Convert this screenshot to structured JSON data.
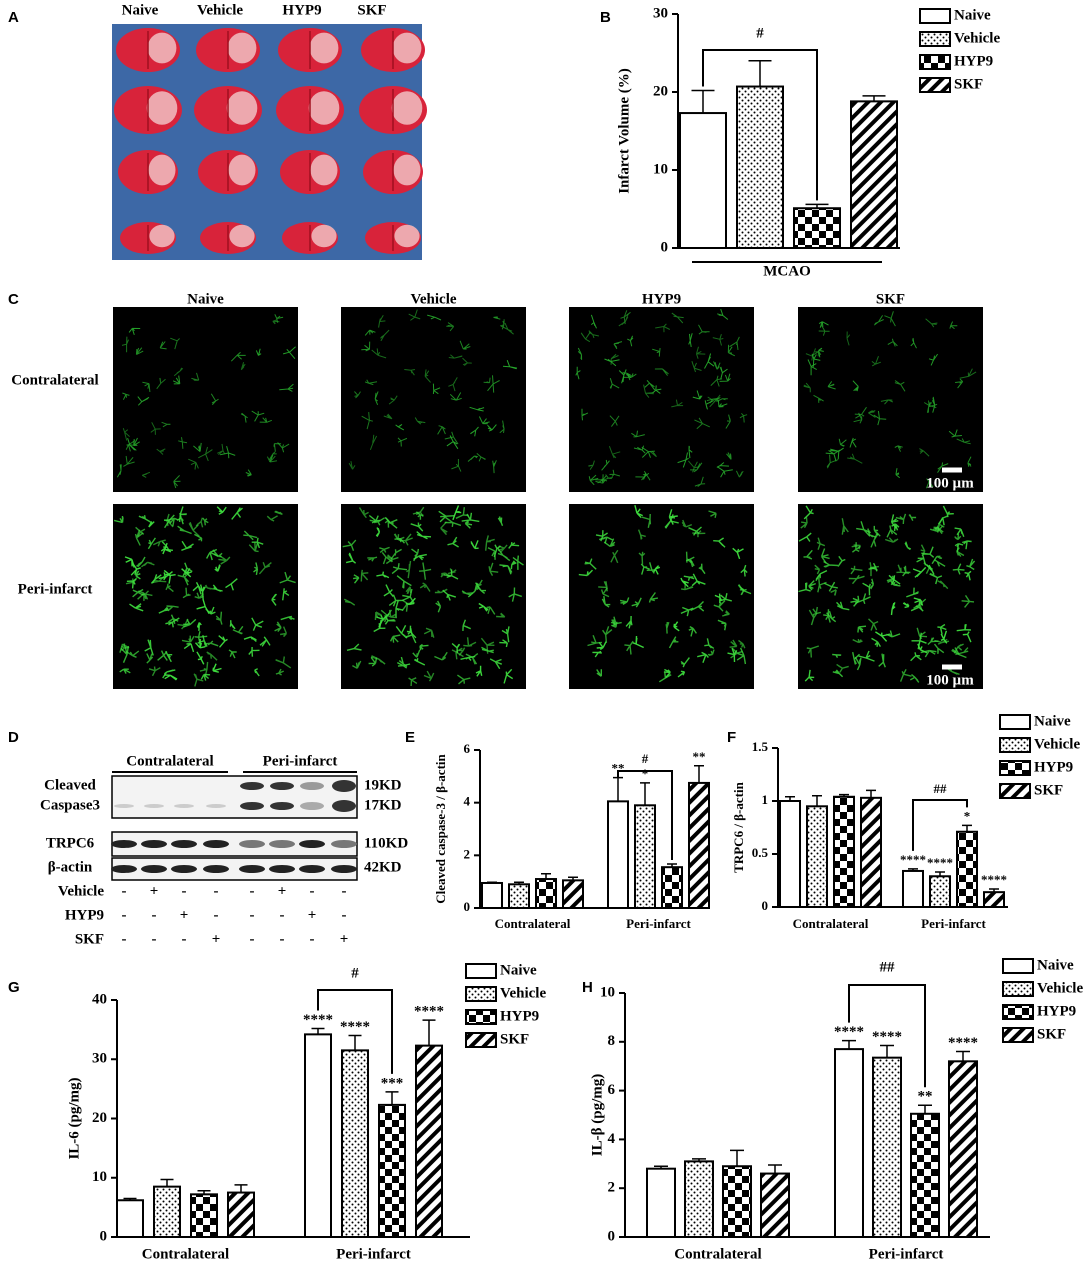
{
  "panels": {
    "A": {
      "letter": "A",
      "columns": [
        "Naive",
        "Vehicle",
        "HYP9",
        "SKF"
      ]
    },
    "C": {
      "letter": "C",
      "columns": [
        "Naive",
        "Vehicle",
        "HYP9",
        "SKF"
      ],
      "rows": [
        "Contralateral",
        "Peri-infarct"
      ],
      "scale_bar": [
        "100 µm",
        "100 µm"
      ]
    },
    "D": {
      "letter": "D",
      "groups": [
        "Contralateral",
        "Peri-infarct"
      ],
      "bands": [
        {
          "label": [
            "Cleaved",
            "Caspase3"
          ],
          "sizes": [
            "19KD",
            "17KD"
          ]
        },
        {
          "label": [
            "TRPC6"
          ],
          "sizes": [
            "110KD"
          ]
        },
        {
          "label": [
            "β-actin"
          ],
          "sizes": [
            "42KD"
          ]
        }
      ],
      "treatments": [
        {
          "name": "Vehicle",
          "signs": [
            "-",
            "+",
            "-",
            "-",
            "-",
            "+",
            "-",
            "-"
          ]
        },
        {
          "name": "HYP9",
          "signs": [
            "-",
            "-",
            "+",
            "-",
            "-",
            "-",
            "+",
            "-"
          ]
        },
        {
          "name": "SKF",
          "signs": [
            "-",
            "-",
            "-",
            "+",
            "-",
            "-",
            "-",
            "+"
          ]
        }
      ]
    }
  },
  "chart_data": [
    {
      "letter": "B",
      "type": "bar",
      "ylabel": "Infarct Volume (%)",
      "categories": [
        "MCAO"
      ],
      "ylim": [
        0,
        30
      ],
      "yticks": [
        0,
        10,
        20,
        30
      ],
      "bracket_label": "#",
      "legend": true,
      "series": [
        {
          "name": "Naive",
          "pattern": "none",
          "values": [
            17.3
          ],
          "errors": [
            2.9
          ],
          "stars": [
            null
          ]
        },
        {
          "name": "Vehicle",
          "pattern": "dots",
          "values": [
            20.7
          ],
          "errors": [
            3.3
          ],
          "stars": [
            null
          ]
        },
        {
          "name": "HYP9",
          "pattern": "checker",
          "values": [
            5.1
          ],
          "errors": [
            0.5
          ],
          "stars": [
            null
          ]
        },
        {
          "name": "SKF",
          "pattern": "stripes",
          "values": [
            18.8
          ],
          "errors": [
            0.7
          ],
          "stars": [
            null
          ]
        }
      ]
    },
    {
      "letter": "E",
      "type": "bar",
      "ylabel": "Cleaved caspase-3 / β-actin",
      "categories": [
        "Contralateral",
        "Peri-infarct"
      ],
      "ylim": [
        0,
        6
      ],
      "yticks": [
        0,
        2,
        4,
        6
      ],
      "bracket_label": "#",
      "legend": false,
      "series": [
        {
          "pattern": "none",
          "values": [
            0.95,
            4.05
          ],
          "errors": [
            0.03,
            0.9
          ],
          "stars": [
            null,
            "**"
          ]
        },
        {
          "pattern": "dots",
          "values": [
            0.9,
            3.9
          ],
          "errors": [
            0.08,
            0.85
          ],
          "stars": [
            null,
            "*"
          ]
        },
        {
          "pattern": "checker",
          "values": [
            1.1,
            1.55
          ],
          "errors": [
            0.2,
            0.12
          ],
          "stars": [
            null,
            null
          ]
        },
        {
          "pattern": "stripes",
          "values": [
            1.05,
            4.75
          ],
          "errors": [
            0.12,
            0.65
          ],
          "stars": [
            null,
            "**"
          ]
        }
      ]
    },
    {
      "letter": "F",
      "type": "bar",
      "ylabel": "TRPC6 / β-actin",
      "categories": [
        "Contralateral",
        "Peri-infarct"
      ],
      "ylim": [
        0,
        1.5
      ],
      "yticks": [
        0,
        0.5,
        1,
        1.5
      ],
      "bracket_label": "##",
      "legend": true,
      "series": [
        {
          "name": "Naive",
          "pattern": "none",
          "values": [
            1.0,
            0.34
          ],
          "errors": [
            0.04,
            0.02
          ],
          "stars": [
            null,
            "****"
          ]
        },
        {
          "name": "Vehicle",
          "pattern": "dots",
          "values": [
            0.95,
            0.29
          ],
          "errors": [
            0.1,
            0.04
          ],
          "stars": [
            null,
            "****"
          ]
        },
        {
          "name": "HYP9",
          "pattern": "checker",
          "values": [
            1.04,
            0.71
          ],
          "errors": [
            0.02,
            0.06
          ],
          "stars": [
            null,
            "*"
          ]
        },
        {
          "name": "SKF",
          "pattern": "stripes",
          "values": [
            1.03,
            0.14
          ],
          "errors": [
            0.07,
            0.03
          ],
          "stars": [
            null,
            "****"
          ]
        }
      ]
    },
    {
      "letter": "G",
      "type": "bar",
      "ylabel": "IL-6 (pg/mg)",
      "categories": [
        "Contralateral",
        "Peri-infarct"
      ],
      "ylim": [
        0,
        40
      ],
      "yticks": [
        0,
        10,
        20,
        30,
        40
      ],
      "bracket_label": "#",
      "legend": true,
      "series": [
        {
          "name": "Naive",
          "pattern": "none",
          "values": [
            6.2,
            34.2
          ],
          "errors": [
            0.3,
            1.0
          ],
          "stars": [
            null,
            "****"
          ]
        },
        {
          "name": "Vehicle",
          "pattern": "dots",
          "values": [
            8.5,
            31.5
          ],
          "errors": [
            1.2,
            2.5
          ],
          "stars": [
            null,
            "****"
          ]
        },
        {
          "name": "HYP9",
          "pattern": "checker",
          "values": [
            7.2,
            22.3
          ],
          "errors": [
            0.6,
            2.2
          ],
          "stars": [
            null,
            "***"
          ]
        },
        {
          "name": "SKF",
          "pattern": "stripes",
          "values": [
            7.5,
            32.3
          ],
          "errors": [
            1.3,
            4.3
          ],
          "stars": [
            null,
            "****"
          ]
        }
      ]
    },
    {
      "letter": "H",
      "type": "bar",
      "ylabel": "IL-β (pg/mg)",
      "categories": [
        "Contralateral",
        "Peri-infarct"
      ],
      "ylim": [
        0,
        10
      ],
      "yticks": [
        0,
        2,
        4,
        6,
        8,
        10
      ],
      "bracket_label": "##",
      "legend": true,
      "series": [
        {
          "name": "Naive",
          "pattern": "none",
          "values": [
            2.8,
            7.7
          ],
          "errors": [
            0.1,
            0.35
          ],
          "stars": [
            null,
            "****"
          ]
        },
        {
          "name": "Vehicle",
          "pattern": "dots",
          "values": [
            3.1,
            7.35
          ],
          "errors": [
            0.1,
            0.5
          ],
          "stars": [
            null,
            "****"
          ]
        },
        {
          "name": "HYP9",
          "pattern": "checker",
          "values": [
            2.9,
            5.05
          ],
          "errors": [
            0.65,
            0.35
          ],
          "stars": [
            null,
            "**"
          ]
        },
        {
          "name": "SKF",
          "pattern": "stripes",
          "values": [
            2.6,
            7.2
          ],
          "errors": [
            0.35,
            0.4
          ],
          "stars": [
            null,
            "****"
          ]
        }
      ]
    }
  ]
}
